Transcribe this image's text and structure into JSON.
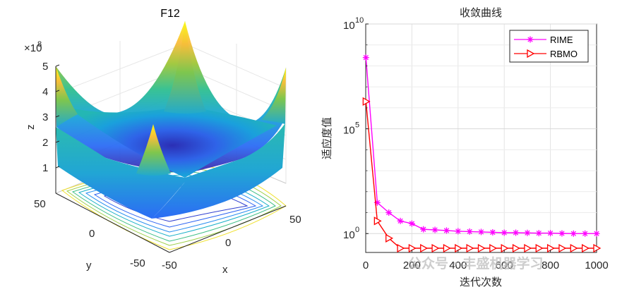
{
  "chart_data": [
    {
      "type": "surface3d",
      "title": "F12",
      "xlabel": "x",
      "ylabel": "y",
      "zlabel": "z",
      "z_exponent": "×10",
      "z_exponent_power": "8",
      "x_ticks": [
        "-50",
        "0",
        "50"
      ],
      "y_ticks": [
        "-50",
        "0",
        "50"
      ],
      "z_ticks": [
        "1",
        "2",
        "3",
        "4",
        "5"
      ],
      "zlim": [
        0,
        5
      ],
      "colormap": [
        "#3e26a8",
        "#2c6cf5",
        "#19a6d8",
        "#2ebf8f",
        "#9dc638",
        "#fbbc3b",
        "#f9fb15"
      ]
    },
    {
      "type": "line",
      "title": "收敛曲线",
      "xlabel": "迭代次数",
      "ylabel": "适应度值",
      "yscale": "log",
      "xlim": [
        0,
        1000
      ],
      "x_ticks": [
        "0",
        "200",
        "400",
        "600",
        "800",
        "1000"
      ],
      "y_ticks": [
        {
          "base": "10",
          "exp": "0",
          "value": 1
        },
        {
          "base": "10",
          "exp": "5",
          "value": 100000
        },
        {
          "base": "10",
          "exp": "10",
          "value": 10000000000
        }
      ],
      "legend_position": "top-right",
      "series": [
        {
          "name": "RIME",
          "color": "#ff00ff",
          "marker": "asterisk",
          "x": [
            1,
            50,
            100,
            150,
            200,
            250,
            300,
            350,
            400,
            450,
            500,
            550,
            600,
            650,
            700,
            750,
            800,
            850,
            900,
            950,
            1000
          ],
          "y": [
            250000000.0,
            30,
            10,
            4,
            3,
            1.6,
            1.5,
            1.4,
            1.3,
            1.25,
            1.2,
            1.15,
            1.1,
            1.1,
            1.08,
            1.05,
            1.05,
            1.02,
            1.0,
            1.0,
            1.0
          ]
        },
        {
          "name": "RBMO",
          "color": "#ff0000",
          "marker": "triangle-right",
          "x": [
            1,
            50,
            100,
            150,
            200,
            250,
            300,
            350,
            400,
            450,
            500,
            550,
            600,
            650,
            700,
            750,
            800,
            850,
            900,
            950,
            1000
          ],
          "y": [
            2000000.0,
            4,
            0.6,
            0.2,
            0.2,
            0.2,
            0.2,
            0.2,
            0.2,
            0.2,
            0.2,
            0.2,
            0.2,
            0.2,
            0.2,
            0.2,
            0.2,
            0.2,
            0.2,
            0.2,
            0.2
          ]
        }
      ]
    }
  ],
  "watermark": "公众号 · 丰盛机器学习"
}
